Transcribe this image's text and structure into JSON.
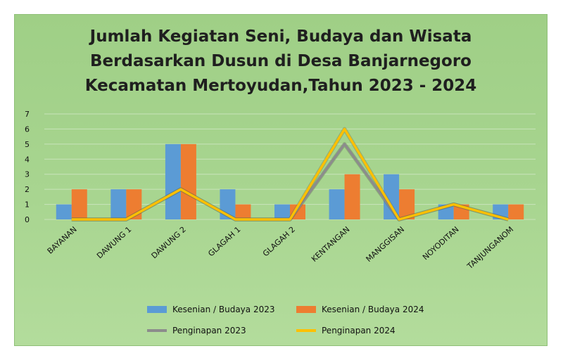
{
  "chart_data": {
    "type": "bar",
    "title": [
      "Jumlah Kegiatan Seni, Budaya dan Wisata",
      "Berdasarkan Dusun di Desa Banjarnegoro",
      "Kecamatan Mertoyudan,Tahun 2023 - 2024"
    ],
    "categories": [
      "BAYANAN",
      "DAWUNG 1",
      "DAWUNG 2",
      "GLAGAH 1",
      "GLAGAH 2",
      "KENTANGAN",
      "MANGGISAN",
      "NOYODITAN",
      "TANJUNGANOM"
    ],
    "ylim": [
      0,
      7
    ],
    "yticks": [
      "0",
      "1",
      "2",
      "3",
      "4",
      "5",
      "6",
      "7"
    ],
    "grid": true,
    "legend": "bottom",
    "series": [
      {
        "name": "Kesenian / Budaya 2023",
        "kind": "bar",
        "color": "#5b9bd5",
        "values": [
          1,
          2,
          5,
          2,
          1,
          2,
          3,
          1,
          1
        ]
      },
      {
        "name": "Kesenian / Budaya 2024",
        "kind": "bar",
        "color": "#ed7d31",
        "values": [
          2,
          2,
          5,
          1,
          1,
          3,
          2,
          1,
          1
        ]
      },
      {
        "name": "Penginapan 2023",
        "kind": "line",
        "color": "#8c8c8c",
        "values": [
          0,
          0,
          2,
          0,
          0,
          5,
          0,
          1,
          0
        ]
      },
      {
        "name": "Penginapan 2024",
        "kind": "line",
        "color": "#ffc000",
        "values": [
          0,
          0,
          2,
          0,
          0,
          6,
          0,
          1,
          0
        ]
      }
    ]
  }
}
